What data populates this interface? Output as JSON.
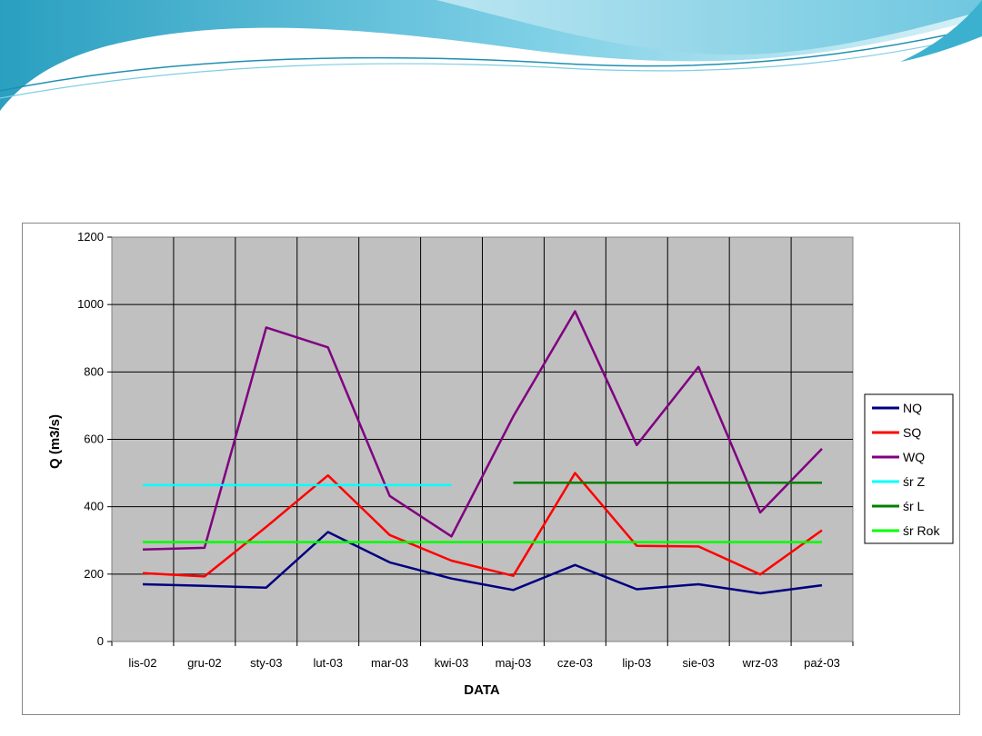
{
  "colors": {
    "banner_dark": "#2fa5c5",
    "banner_light": "#bfe7f2",
    "plot_bg": "#c0c0c0"
  },
  "chart_data": {
    "type": "line",
    "title": "",
    "xlabel": "DATA",
    "ylabel": "Q (m3/s)",
    "ylim": [
      0,
      1200
    ],
    "yticks": [
      0,
      200,
      400,
      600,
      800,
      1000,
      1200
    ],
    "grid": true,
    "legend_position": "right",
    "categories": [
      "lis-02",
      "gru-02",
      "sty-03",
      "lut-03",
      "mar-03",
      "kwi-03",
      "maj-03",
      "cze-03",
      "lip-03",
      "sie-03",
      "wrz-03",
      "paź-03"
    ],
    "series": [
      {
        "name": "NQ",
        "color": "#000080",
        "values": [
          170,
          165,
          160,
          325,
          235,
          187,
          153,
          227,
          155,
          170,
          143,
          167
        ]
      },
      {
        "name": "SQ",
        "color": "#ff0000",
        "values": [
          203,
          193,
          340,
          493,
          316,
          240,
          195,
          500,
          284,
          282,
          199,
          330
        ]
      },
      {
        "name": "WQ",
        "color": "#800080",
        "values": [
          273,
          278,
          932,
          873,
          432,
          312,
          668,
          980,
          583,
          815,
          383,
          572
        ]
      },
      {
        "name": "śr Z",
        "color": "#00ffff",
        "values": [
          464,
          464,
          464,
          464,
          464,
          464,
          null,
          null,
          null,
          null,
          null,
          null
        ]
      },
      {
        "name": "śr L",
        "color": "#008000",
        "values": [
          null,
          null,
          null,
          null,
          null,
          null,
          471,
          471,
          471,
          471,
          471,
          471
        ]
      },
      {
        "name": "śr Rok",
        "color": "#00ff00",
        "values": [
          295,
          295,
          295,
          295,
          295,
          295,
          295,
          295,
          295,
          295,
          295,
          295
        ]
      }
    ]
  }
}
